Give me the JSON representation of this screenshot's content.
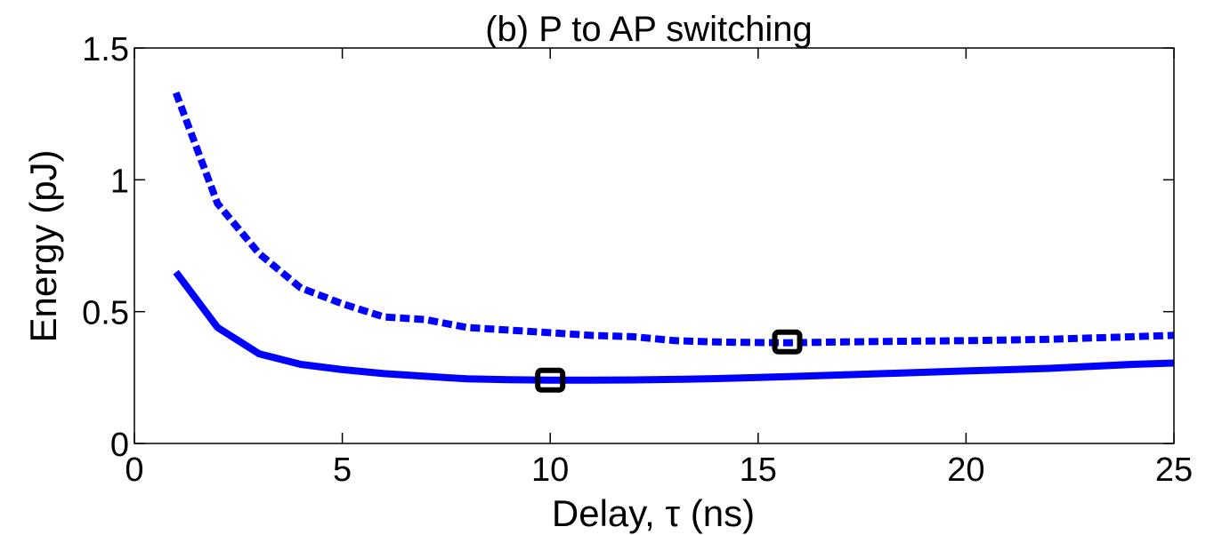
{
  "chart_data": {
    "type": "line",
    "title": "(b) P to AP switching",
    "xlabel": "Delay, τ (ns)",
    "ylabel": "Energy (pJ)",
    "xlim": [
      0,
      25
    ],
    "ylim": [
      0,
      1.5
    ],
    "xticks": [
      0,
      5,
      10,
      15,
      20,
      25
    ],
    "yticks": [
      0,
      0.5,
      1,
      1.5
    ],
    "xtick_labels": [
      "0",
      "5",
      "10",
      "15",
      "20",
      "25"
    ],
    "ytick_labels": [
      "0",
      "0.5",
      "1",
      "1.5"
    ],
    "grid": false,
    "legend": "none",
    "series": [
      {
        "style": "dashed",
        "color": "#0000ff",
        "x": [
          1,
          2,
          3,
          4,
          5,
          6,
          7,
          8,
          9,
          10,
          11,
          12,
          13,
          14,
          15,
          15.7,
          17,
          18,
          20,
          22,
          24,
          25
        ],
        "y": [
          1.33,
          0.91,
          0.72,
          0.59,
          0.53,
          0.48,
          0.47,
          0.44,
          0.43,
          0.42,
          0.41,
          0.405,
          0.39,
          0.385,
          0.383,
          0.382,
          0.385,
          0.387,
          0.39,
          0.395,
          0.405,
          0.41
        ],
        "marker": {
          "x": 15.7,
          "y": 0.385,
          "shape": "square",
          "color": "#000000"
        }
      },
      {
        "style": "solid",
        "color": "#0000ff",
        "x": [
          1,
          2,
          3,
          4,
          5,
          6,
          7,
          8,
          9,
          10,
          11,
          12,
          13,
          14,
          15,
          16,
          17,
          18,
          20,
          22,
          24,
          25
        ],
        "y": [
          0.65,
          0.44,
          0.34,
          0.3,
          0.28,
          0.265,
          0.255,
          0.245,
          0.242,
          0.24,
          0.24,
          0.241,
          0.243,
          0.246,
          0.25,
          0.255,
          0.26,
          0.265,
          0.275,
          0.285,
          0.3,
          0.305
        ],
        "marker": {
          "x": 10,
          "y": 0.24,
          "shape": "square",
          "color": "#000000"
        }
      }
    ]
  }
}
